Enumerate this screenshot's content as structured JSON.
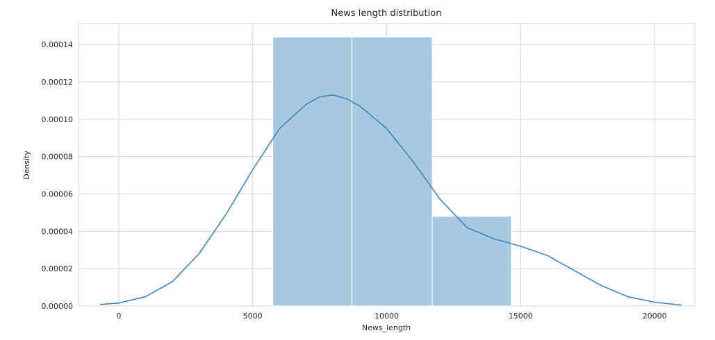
{
  "chart_data": {
    "type": "histogram",
    "title": "News length distribution",
    "xlabel": "News_length",
    "ylabel": "Density",
    "xlim": [
      -1500,
      21500
    ],
    "ylim": [
      0,
      0.0001512
    ],
    "xticks": [
      0,
      5000,
      10000,
      15000,
      20000
    ],
    "xtick_labels": [
      "0",
      "5000",
      "10000",
      "15000",
      "20000"
    ],
    "yticks": [
      0,
      2e-05,
      4e-05,
      6e-05,
      8e-05,
      0.0001,
      0.00012,
      0.00014
    ],
    "ytick_labels": [
      "0.00000",
      "0.00002",
      "0.00004",
      "0.00006",
      "0.00008",
      "0.00010",
      "0.00012",
      "0.00014"
    ],
    "grid": true,
    "bins": [
      {
        "x0": 5750,
        "x1": 8700,
        "density": 0.000144
      },
      {
        "x0": 8700,
        "x1": 11700,
        "density": 0.000144
      },
      {
        "x0": 11700,
        "x1": 14650,
        "density": 4.8e-05
      }
    ],
    "bar_color": "#a6c8e1",
    "kde": {
      "name": "",
      "color": "#3a86bf",
      "points": [
        [
          -700,
          8e-07
        ],
        [
          0,
          1.6e-06
        ],
        [
          1000,
          5e-06
        ],
        [
          2000,
          1.3e-05
        ],
        [
          3000,
          2.8e-05
        ],
        [
          4000,
          4.9e-05
        ],
        [
          5000,
          7.3e-05
        ],
        [
          6000,
          9.5e-05
        ],
        [
          7000,
          0.000108
        ],
        [
          7500,
          0.000112
        ],
        [
          8000,
          0.000113
        ],
        [
          8500,
          0.000111
        ],
        [
          9000,
          0.000107
        ],
        [
          10000,
          9.5e-05
        ],
        [
          11000,
          7.7e-05
        ],
        [
          12000,
          5.7e-05
        ],
        [
          13000,
          4.2e-05
        ],
        [
          14000,
          3.6e-05
        ],
        [
          15000,
          3.2e-05
        ],
        [
          16000,
          2.7e-05
        ],
        [
          17000,
          1.9e-05
        ],
        [
          18000,
          1.1e-05
        ],
        [
          19000,
          5e-06
        ],
        [
          20000,
          2e-06
        ],
        [
          21000,
          5e-07
        ]
      ]
    }
  }
}
